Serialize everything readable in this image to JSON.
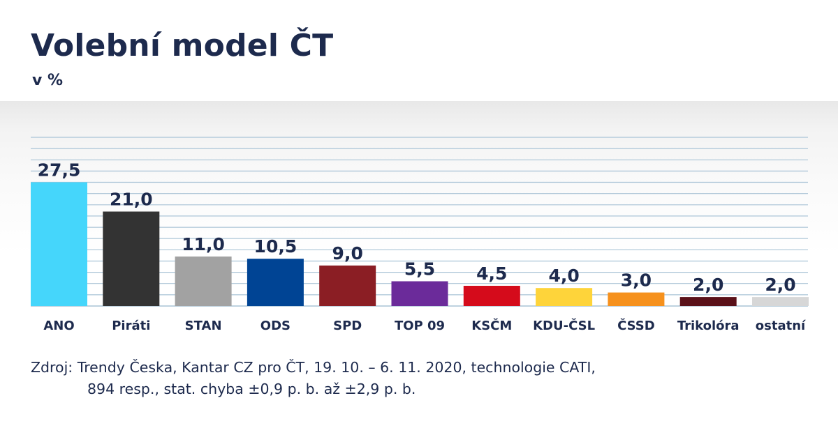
{
  "header": {
    "title": "Volební model ČT",
    "subtitle": "v %"
  },
  "source": {
    "line1": "Zdroj: Trendy Česka, Kantar CZ pro ČT, 19. 10. – 6. 11. 2020, technologie CATI,",
    "line2": "894 resp., stat. chyba ±0,9 p. b. až ±2,9 p. b."
  },
  "chart_data": {
    "type": "bar",
    "title": "Volební model ČT",
    "subtitle": "v %",
    "categories": [
      "ANO",
      "Piráti",
      "STAN",
      "ODS",
      "SPD",
      "TOP 09",
      "KSČM",
      "KDU-ČSL",
      "ČSSD",
      "Trikolóra",
      "ostatní"
    ],
    "values": [
      27.5,
      21.0,
      11.0,
      10.5,
      9.0,
      5.5,
      4.5,
      4.0,
      3.0,
      2.0,
      2.0
    ],
    "value_labels": [
      "27,5",
      "21,0",
      "11,0",
      "10,5",
      "9,0",
      "5,5",
      "4,5",
      "4,0",
      "3,0",
      "2,0",
      "2,0"
    ],
    "colors": [
      "#45d6fb",
      "#333333",
      "#a2a2a2",
      "#004494",
      "#8b1e24",
      "#6b2b9a",
      "#d50b1b",
      "#fed43a",
      "#f6911d",
      "#5a1119",
      "#d7d7d7"
    ],
    "ylim": [
      0,
      37.5
    ],
    "grid": true,
    "grid_step": 2.5,
    "grid_color": "#a9c3d6",
    "xlabel": "",
    "ylabel": ""
  }
}
